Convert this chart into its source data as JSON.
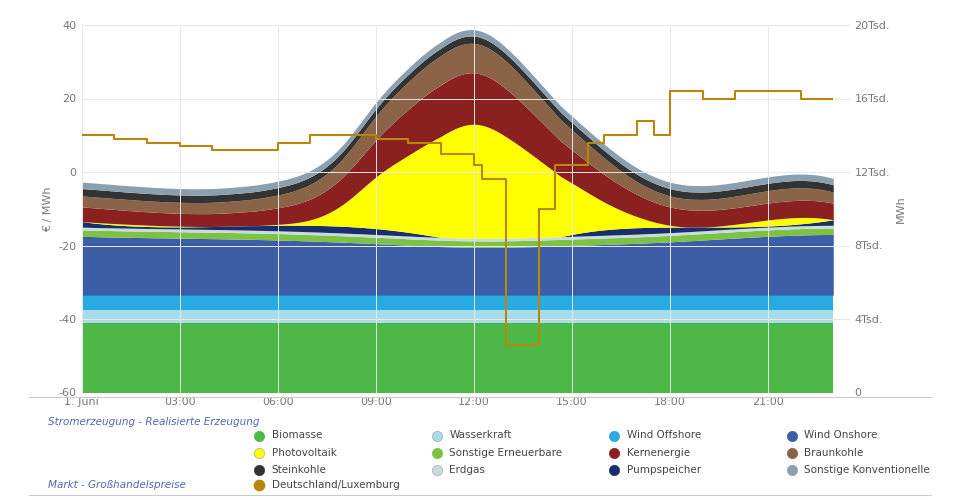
{
  "colors": {
    "biomasse": "#4db848",
    "wasserkraft": "#a8dce8",
    "wind_offshore": "#29abe2",
    "wind_onshore": "#3b5ea6",
    "photovoltaik": "#ffff00",
    "sonstige_erneuerbare": "#7dc242",
    "kernenergie": "#8b2020",
    "braunkohle": "#8b6347",
    "steinkohle": "#333333",
    "erdgas": "#c8dce0",
    "pumpspeicher": "#1a2e6e",
    "sonstige_konventionelle": "#8aa0b0",
    "price": "#b8860b"
  },
  "ylim_left": [
    -60,
    40
  ],
  "ylim_right": [
    0,
    20000
  ],
  "yticks_left": [
    -60,
    -40,
    -20,
    0,
    20,
    40
  ],
  "yticks_right": [
    0,
    4000,
    8000,
    12000,
    16000,
    20000
  ],
  "ytick_labels_right": [
    "0",
    "4Tsd.",
    "8Tsd.",
    "12Tsd.",
    "16Tsd.",
    "20Tsd."
  ],
  "xtick_positions": [
    0,
    3,
    6,
    9,
    12,
    15,
    18,
    21
  ],
  "xtick_labels": [
    "1. Juni",
    "03:00",
    "06:00",
    "09:00",
    "12:00",
    "15:00",
    "18:00",
    "21:00"
  ],
  "ylabel_left": "€ / MWh",
  "ylabel_right": "MWh",
  "legend_title1": "Stromerzeugung - Realisierte Erzeugung",
  "legend_title2": "Markt - Großhandelspreise",
  "background_color": "#ffffff",
  "grid_color": "#e8e8e8"
}
